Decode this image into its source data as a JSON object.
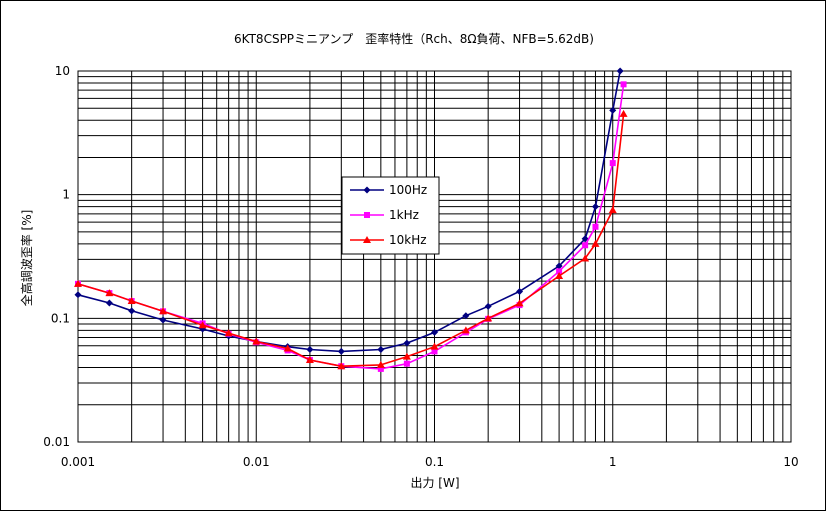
{
  "chart_data": {
    "type": "line",
    "title": "6KT8CSPPミニアンプ　歪率特性（Rch、8Ω負荷、NFB=5.62dB)",
    "xlabel": "出力 [W]",
    "ylabel": "全高調波歪率 [%]",
    "x_scale": "log",
    "y_scale": "log",
    "xlim": [
      0.001,
      10
    ],
    "ylim": [
      0.01,
      10
    ],
    "x_ticks": [
      "0.001",
      "0.01",
      "0.1",
      "1",
      "10"
    ],
    "y_ticks": [
      "0.01",
      "0.1",
      "1",
      "10"
    ],
    "grid": true,
    "legend_position": "center-left",
    "series": [
      {
        "name": "100Hz",
        "color": "#000080",
        "marker": "diamond",
        "x": [
          0.001,
          0.0015,
          0.002,
          0.003,
          0.005,
          0.007,
          0.01,
          0.015,
          0.02,
          0.03,
          0.05,
          0.07,
          0.1,
          0.15,
          0.2,
          0.3,
          0.5,
          0.7,
          0.8,
          1.0,
          1.1
        ],
        "y": [
          0.155,
          0.133,
          0.115,
          0.097,
          0.082,
          0.072,
          0.065,
          0.059,
          0.056,
          0.054,
          0.056,
          0.063,
          0.077,
          0.105,
          0.125,
          0.165,
          0.265,
          0.44,
          0.8,
          4.8,
          10.0
        ]
      },
      {
        "name": "1kHz",
        "color": "#ff00ff",
        "marker": "square",
        "x": [
          0.001,
          0.0015,
          0.002,
          0.003,
          0.005,
          0.007,
          0.01,
          0.015,
          0.02,
          0.03,
          0.05,
          0.07,
          0.1,
          0.15,
          0.2,
          0.3,
          0.5,
          0.7,
          0.8,
          1.0,
          1.15
        ],
        "y": [
          0.19,
          0.16,
          0.138,
          0.114,
          0.091,
          0.075,
          0.064,
          0.055,
          0.046,
          0.041,
          0.039,
          0.043,
          0.054,
          0.077,
          0.099,
          0.128,
          0.24,
          0.39,
          0.55,
          1.8,
          7.8
        ]
      },
      {
        "name": "10kHz",
        "color": "#ff0000",
        "marker": "triangle",
        "x": [
          0.001,
          0.0015,
          0.002,
          0.003,
          0.005,
          0.007,
          0.01,
          0.015,
          0.02,
          0.03,
          0.05,
          0.07,
          0.1,
          0.15,
          0.2,
          0.3,
          0.5,
          0.7,
          0.8,
          1.0,
          1.15
        ],
        "y": [
          0.19,
          0.16,
          0.138,
          0.114,
          0.088,
          0.076,
          0.065,
          0.057,
          0.046,
          0.041,
          0.042,
          0.049,
          0.059,
          0.08,
          0.1,
          0.132,
          0.22,
          0.305,
          0.4,
          0.75,
          4.5
        ]
      }
    ]
  }
}
